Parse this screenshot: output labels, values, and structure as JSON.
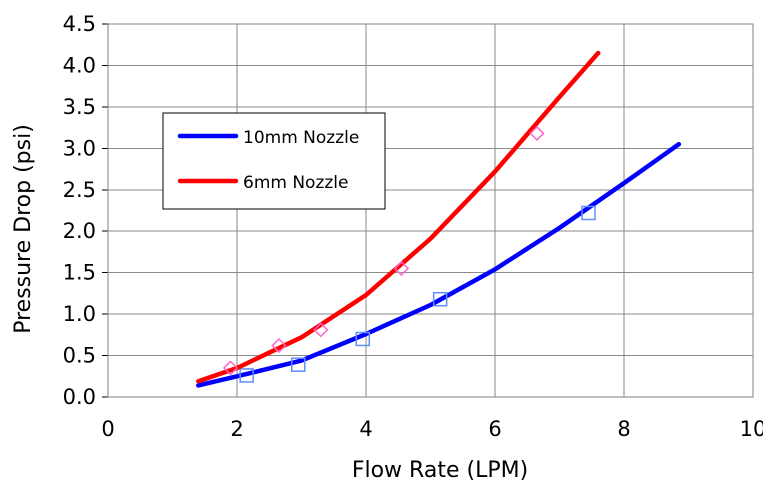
{
  "chart_data": {
    "type": "line",
    "title": "",
    "xlabel": "Flow Rate  (LPM)",
    "ylabel": "Pressure Drop  (psi)",
    "xlim": [
      0,
      10
    ],
    "ylim": [
      0,
      4.5
    ],
    "xticks": [
      0,
      2,
      4,
      6,
      8,
      10
    ],
    "xtick_labels": [
      "0",
      "2",
      "4",
      "6",
      "8",
      "10"
    ],
    "yticks": [
      0,
      0.5,
      1,
      1.5,
      2,
      2.5,
      3,
      3.5,
      4,
      4.5
    ],
    "ytick_labels": [
      "0.0",
      "0.5",
      "1.0",
      "1.5",
      "2.0",
      "2.5",
      "3.0",
      "3.5",
      "4.0",
      "4.5"
    ],
    "grid": true,
    "legend_placement": "upper-left-inside",
    "series": [
      {
        "name": "10mm Nozzle",
        "color": "#0000ff",
        "marker_color": "#5f8fff",
        "marker": "square",
        "line_x": [
          1.4,
          2.0,
          3.0,
          4.0,
          5.0,
          6.0,
          7.0,
          8.0,
          8.85
        ],
        "line_y": [
          0.14,
          0.25,
          0.44,
          0.76,
          1.11,
          1.54,
          2.04,
          2.58,
          3.05
        ],
        "points_x": [
          2.15,
          2.95,
          3.95,
          5.15,
          7.45
        ],
        "points_y": [
          0.26,
          0.39,
          0.7,
          1.18,
          2.22
        ]
      },
      {
        "name": "6mm Nozzle",
        "color": "#ff0000",
        "marker_color": "#ff66cc",
        "marker": "diamond",
        "line_x": [
          1.4,
          2.0,
          3.0,
          4.0,
          5.0,
          6.0,
          7.0,
          7.6
        ],
        "line_y": [
          0.19,
          0.35,
          0.72,
          1.23,
          1.91,
          2.72,
          3.62,
          4.15
        ],
        "points_x": [
          1.9,
          2.65,
          3.3,
          4.55,
          6.65
        ],
        "points_y": [
          0.35,
          0.62,
          0.81,
          1.55,
          3.18
        ]
      }
    ]
  }
}
